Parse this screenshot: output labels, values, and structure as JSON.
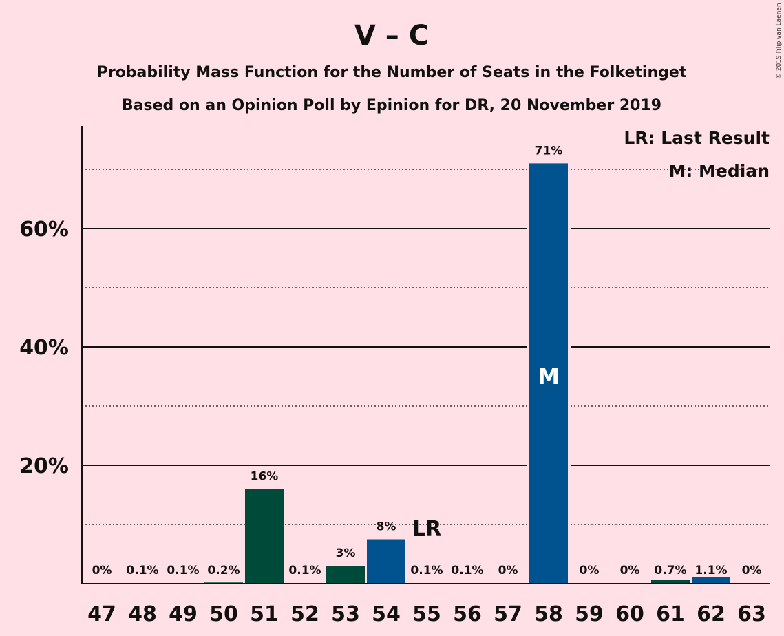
{
  "copyright": "© 2019 Filip van Laenen",
  "chart_data": {
    "type": "bar",
    "title": "V – C",
    "subtitle_lines": [
      "Probability Mass Function for the Number of Seats in the Folketinget",
      "Based on an Opinion Poll by Epinion for DR, 20 November 2019"
    ],
    "xlabel": "",
    "ylabel": "",
    "ylim": [
      0,
      77
    ],
    "y_major_ticks": [
      20,
      40,
      60
    ],
    "y_major_tick_labels": [
      "20%",
      "40%",
      "60%"
    ],
    "y_minor_gridlines": [
      10,
      30,
      50,
      70
    ],
    "categories": [
      "47",
      "48",
      "49",
      "50",
      "51",
      "52",
      "53",
      "54",
      "55",
      "56",
      "57",
      "58",
      "59",
      "60",
      "61",
      "62",
      "63"
    ],
    "values": [
      0,
      0.1,
      0.1,
      0.2,
      16,
      0.1,
      3,
      7.5,
      0.1,
      0.1,
      0,
      71,
      0,
      0,
      0.7,
      1.1,
      0
    ],
    "value_labels": [
      "0%",
      "0.1%",
      "0.1%",
      "0.2%",
      "16%",
      "0.1%",
      "3%",
      "8%",
      "0.1%",
      "0.1%",
      "0%",
      "71%",
      "0%",
      "0%",
      "0.7%",
      "1.1%",
      "0%"
    ],
    "bar_colors": [
      "#004a3a",
      "#004a3a",
      "#004a3a",
      "#004a3a",
      "#004a3a",
      "#004a3a",
      "#004a3a",
      "#00538f",
      "#00538f",
      "#00538f",
      "#00538f",
      "#00538f",
      "#00538f",
      "#00538f",
      "#004a3a",
      "#00538f",
      "#00538f"
    ],
    "last_result": {
      "category": "55",
      "label": "LR"
    },
    "median": {
      "category": "58",
      "label": "M"
    },
    "legend": {
      "position": "top-right",
      "entries": [
        "LR: Last Result",
        "M: Median"
      ]
    },
    "grid": true,
    "colors": {
      "background": "#ffe0e6",
      "green": "#004a3a",
      "blue": "#00538f"
    }
  }
}
